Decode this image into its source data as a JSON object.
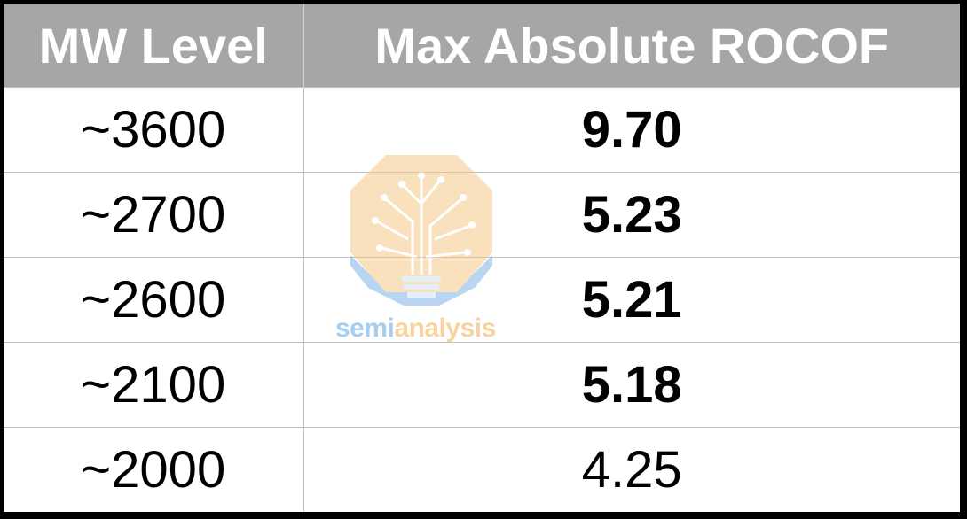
{
  "table": {
    "header": [
      "MW Level",
      "Max Absolute ROCOF"
    ],
    "rows": [
      {
        "mw": "~3600",
        "rocof": "9.70",
        "bold": true
      },
      {
        "mw": "~2700",
        "rocof": "5.23",
        "bold": true
      },
      {
        "mw": "~2600",
        "rocof": "5.21",
        "bold": true
      },
      {
        "mw": "~2100",
        "rocof": "5.18",
        "bold": true
      },
      {
        "mw": "~2000",
        "rocof": "4.25",
        "bold": false
      }
    ]
  },
  "watermark": {
    "parts": [
      "semi",
      "analysis"
    ]
  }
}
